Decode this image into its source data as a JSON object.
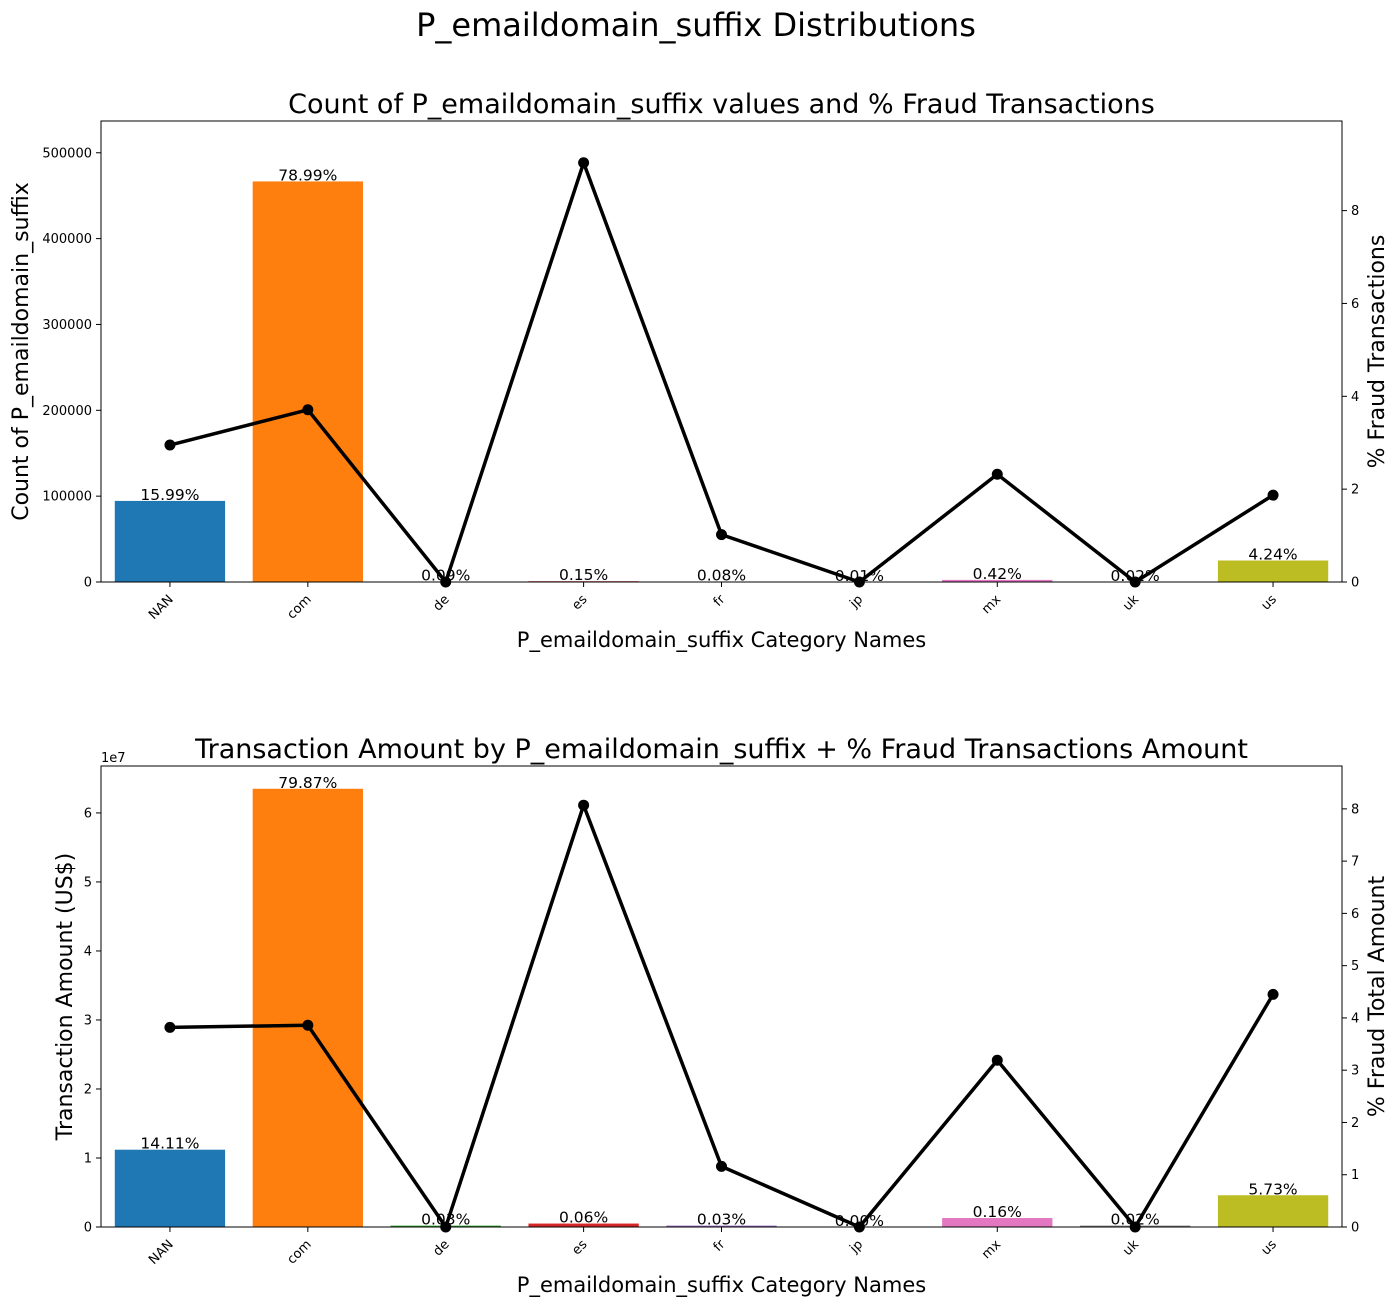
{
  "page": {
    "suptitle": "P_emaildomain_suffix Distributions"
  },
  "colors": {
    "palette": [
      "#1f77b4",
      "#ff7f0e",
      "#2ca02c",
      "#d62728",
      "#9467bd",
      "#8c564b",
      "#e377c2",
      "#7f7f7f",
      "#bcbd22"
    ],
    "line": "#000000"
  },
  "chart_data": [
    {
      "type": "bar",
      "title": "Count of P_emaildomain_suffix values and % Fraud Transactions",
      "xlabel": "P_emaildomain_suffix Category Names",
      "ylabel": "Count of P_emaildomain_suffix",
      "y2label": "% Fraud Transactions",
      "categories": [
        "NAN",
        "com",
        "de",
        "es",
        "fr",
        "jp",
        "mx",
        "uk",
        "us"
      ],
      "values": [
        94456,
        466615,
        532,
        886,
        473,
        59,
        2481,
        118,
        25047
      ],
      "bar_labels": [
        "15.99%",
        "78.99%",
        "0.09%",
        "0.15%",
        "0.08%",
        "0.01%",
        "0.42%",
        "0.02%",
        "4.24%"
      ],
      "ylim": [
        0,
        537000
      ],
      "yticks": [
        0,
        100000,
        200000,
        300000,
        400000,
        500000
      ],
      "y_offset_text": "",
      "line_series": {
        "values": [
          2.95,
          3.71,
          0.0,
          9.03,
          1.02,
          0.0,
          2.32,
          0.0,
          1.87
        ]
      },
      "y2lim": [
        0,
        9.93
      ],
      "y2ticks": [
        0,
        2,
        4,
        6,
        8
      ]
    },
    {
      "type": "bar",
      "title": "Transaction Amount by P_emaildomain_suffix + % Fraud Transactions Amount",
      "xlabel": "P_emaildomain_suffix Category Names",
      "ylabel": "Transaction Amount (US$)",
      "y2label": "% Fraud Total Amount",
      "categories": [
        "NAN",
        "com",
        "de",
        "es",
        "fr",
        "jp",
        "mx",
        "uk",
        "us"
      ],
      "values": [
        1.12,
        6.35,
        0.02,
        0.05,
        0.02,
        0.0,
        0.13,
        0.02,
        0.46
      ],
      "bar_labels": [
        "14.11%",
        "79.87%",
        "0.03%",
        "0.06%",
        "0.03%",
        "0.00%",
        "0.16%",
        "0.02%",
        "5.73%"
      ],
      "ylim": [
        0,
        6.68
      ],
      "yticks": [
        0,
        1,
        2,
        3,
        4,
        5,
        6
      ],
      "y_offset_text": "1e7",
      "line_series": {
        "values": [
          3.82,
          3.86,
          0.0,
          8.07,
          1.16,
          0.0,
          3.19,
          0.0,
          4.45
        ]
      },
      "y2lim": [
        0,
        8.82
      ],
      "y2ticks": [
        0,
        1,
        2,
        3,
        4,
        5,
        6,
        7,
        8
      ]
    }
  ]
}
